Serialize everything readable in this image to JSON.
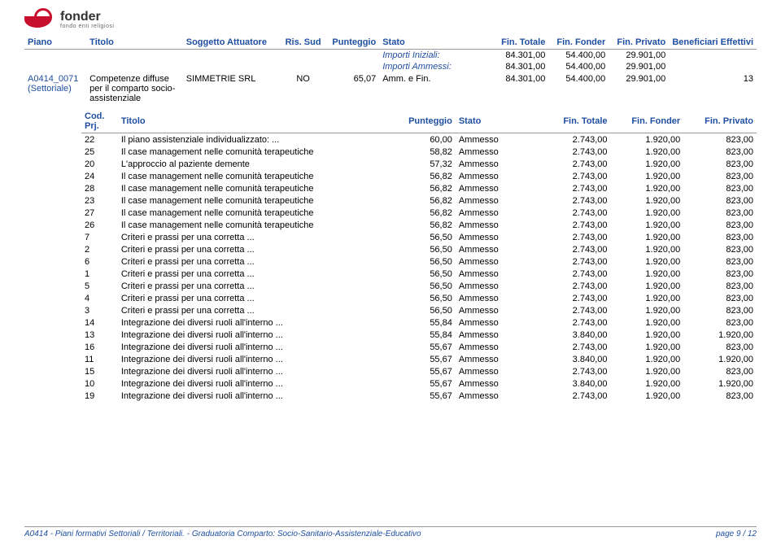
{
  "logo": {
    "name": "fonder",
    "sub": "fondo enti religiosi"
  },
  "header": {
    "columns": [
      "Piano",
      "Titolo",
      "Soggetto Attuatore",
      "Ris. Sud",
      "Punteggio",
      "Stato",
      "Fin. Totale",
      "Fin. Fonder",
      "Fin. Privato",
      "Beneficiari Effettivi"
    ],
    "importi_iniziali_label": "Importi Iniziali:",
    "importi_ammessi_label": "Importi Ammessi:",
    "importi_iniziali": {
      "fin_totale": "84.301,00",
      "fin_fonder": "54.400,00",
      "fin_privato": "29.901,00"
    },
    "importi_ammessi": {
      "fin_totale": "84.301,00",
      "fin_fonder": "54.400,00",
      "fin_privato": "29.901,00"
    },
    "row": {
      "piano_code": "A0414_0071",
      "piano_sett": "(Settoriale)",
      "titolo": "Competenze diffuse per il comparto socio-assistenziale",
      "soggetto": "SIMMETRIE SRL",
      "ris_sud": "NO",
      "punteggio": "65,07",
      "stato": "Amm. e Fin.",
      "fin_totale": "84.301,00",
      "fin_fonder": "54.400,00",
      "fin_privato": "29.901,00",
      "beneficiari": "13"
    }
  },
  "detail": {
    "columns": [
      "Cod. Prj.",
      "Titolo",
      "Punteggio",
      "Stato",
      "Fin. Totale",
      "Fin. Fonder",
      "Fin. Privato"
    ],
    "rows": [
      {
        "cod": "22",
        "titolo": "Il piano assistenziale individualizzato: ...",
        "punteggio": "60,00",
        "stato": "Ammesso",
        "fin_totale": "2.743,00",
        "fin_fonder": "1.920,00",
        "fin_privato": "823,00"
      },
      {
        "cod": "25",
        "titolo": "Il case management nelle comunità terapeutiche",
        "punteggio": "58,82",
        "stato": "Ammesso",
        "fin_totale": "2.743,00",
        "fin_fonder": "1.920,00",
        "fin_privato": "823,00"
      },
      {
        "cod": "20",
        "titolo": "L'approccio al paziente demente",
        "punteggio": "57,32",
        "stato": "Ammesso",
        "fin_totale": "2.743,00",
        "fin_fonder": "1.920,00",
        "fin_privato": "823,00"
      },
      {
        "cod": "24",
        "titolo": "Il case management nelle comunità terapeutiche",
        "punteggio": "56,82",
        "stato": "Ammesso",
        "fin_totale": "2.743,00",
        "fin_fonder": "1.920,00",
        "fin_privato": "823,00"
      },
      {
        "cod": "28",
        "titolo": "Il case management nelle comunità terapeutiche",
        "punteggio": "56,82",
        "stato": "Ammesso",
        "fin_totale": "2.743,00",
        "fin_fonder": "1.920,00",
        "fin_privato": "823,00"
      },
      {
        "cod": "23",
        "titolo": "Il case management nelle comunità terapeutiche",
        "punteggio": "56,82",
        "stato": "Ammesso",
        "fin_totale": "2.743,00",
        "fin_fonder": "1.920,00",
        "fin_privato": "823,00"
      },
      {
        "cod": "27",
        "titolo": "Il case management nelle comunità terapeutiche",
        "punteggio": "56,82",
        "stato": "Ammesso",
        "fin_totale": "2.743,00",
        "fin_fonder": "1.920,00",
        "fin_privato": "823,00"
      },
      {
        "cod": "26",
        "titolo": "Il case management nelle comunità terapeutiche",
        "punteggio": "56,82",
        "stato": "Ammesso",
        "fin_totale": "2.743,00",
        "fin_fonder": "1.920,00",
        "fin_privato": "823,00"
      },
      {
        "cod": "7",
        "titolo": "Criteri e prassi per una corretta ...",
        "punteggio": "56,50",
        "stato": "Ammesso",
        "fin_totale": "2.743,00",
        "fin_fonder": "1.920,00",
        "fin_privato": "823,00"
      },
      {
        "cod": "2",
        "titolo": "Criteri e prassi per una corretta ...",
        "punteggio": "56,50",
        "stato": "Ammesso",
        "fin_totale": "2.743,00",
        "fin_fonder": "1.920,00",
        "fin_privato": "823,00"
      },
      {
        "cod": "6",
        "titolo": "Criteri e prassi per una corretta ...",
        "punteggio": "56,50",
        "stato": "Ammesso",
        "fin_totale": "2.743,00",
        "fin_fonder": "1.920,00",
        "fin_privato": "823,00"
      },
      {
        "cod": "1",
        "titolo": "Criteri e prassi per una corretta ...",
        "punteggio": "56,50",
        "stato": "Ammesso",
        "fin_totale": "2.743,00",
        "fin_fonder": "1.920,00",
        "fin_privato": "823,00"
      },
      {
        "cod": "5",
        "titolo": "Criteri e prassi per una corretta ...",
        "punteggio": "56,50",
        "stato": "Ammesso",
        "fin_totale": "2.743,00",
        "fin_fonder": "1.920,00",
        "fin_privato": "823,00"
      },
      {
        "cod": "4",
        "titolo": "Criteri e prassi per una corretta ...",
        "punteggio": "56,50",
        "stato": "Ammesso",
        "fin_totale": "2.743,00",
        "fin_fonder": "1.920,00",
        "fin_privato": "823,00"
      },
      {
        "cod": "3",
        "titolo": "Criteri e prassi per una corretta ...",
        "punteggio": "56,50",
        "stato": "Ammesso",
        "fin_totale": "2.743,00",
        "fin_fonder": "1.920,00",
        "fin_privato": "823,00"
      },
      {
        "cod": "14",
        "titolo": "Integrazione dei diversi ruoli all'interno ...",
        "punteggio": "55,84",
        "stato": "Ammesso",
        "fin_totale": "2.743,00",
        "fin_fonder": "1.920,00",
        "fin_privato": "823,00"
      },
      {
        "cod": "13",
        "titolo": "Integrazione dei diversi ruoli all'interno ...",
        "punteggio": "55,84",
        "stato": "Ammesso",
        "fin_totale": "3.840,00",
        "fin_fonder": "1.920,00",
        "fin_privato": "1.920,00"
      },
      {
        "cod": "16",
        "titolo": "Integrazione dei diversi ruoli all'interno ...",
        "punteggio": "55,67",
        "stato": "Ammesso",
        "fin_totale": "2.743,00",
        "fin_fonder": "1.920,00",
        "fin_privato": "823,00"
      },
      {
        "cod": "11",
        "titolo": "Integrazione dei diversi ruoli all'interno ...",
        "punteggio": "55,67",
        "stato": "Ammesso",
        "fin_totale": "3.840,00",
        "fin_fonder": "1.920,00",
        "fin_privato": "1.920,00"
      },
      {
        "cod": "15",
        "titolo": "Integrazione dei diversi ruoli all'interno ...",
        "punteggio": "55,67",
        "stato": "Ammesso",
        "fin_totale": "2.743,00",
        "fin_fonder": "1.920,00",
        "fin_privato": "823,00"
      },
      {
        "cod": "10",
        "titolo": "Integrazione dei diversi ruoli all'interno ...",
        "punteggio": "55,67",
        "stato": "Ammesso",
        "fin_totale": "3.840,00",
        "fin_fonder": "1.920,00",
        "fin_privato": "1.920,00"
      },
      {
        "cod": "19",
        "titolo": "Integrazione dei diversi ruoli all'interno ...",
        "punteggio": "55,67",
        "stato": "Ammesso",
        "fin_totale": "2.743,00",
        "fin_fonder": "1.920,00",
        "fin_privato": "823,00"
      }
    ]
  },
  "footer": {
    "left": "A0414 - Piani formativi Settoriali / Territoriali. - Graduatoria Comparto: Socio-Sanitario-Assistenziale-Educativo",
    "right": "page 9 / 12"
  },
  "colors": {
    "blue": "#1f4fa0",
    "red": "#c8102e",
    "border": "#999999",
    "text": "#000000",
    "background": "#ffffff"
  }
}
